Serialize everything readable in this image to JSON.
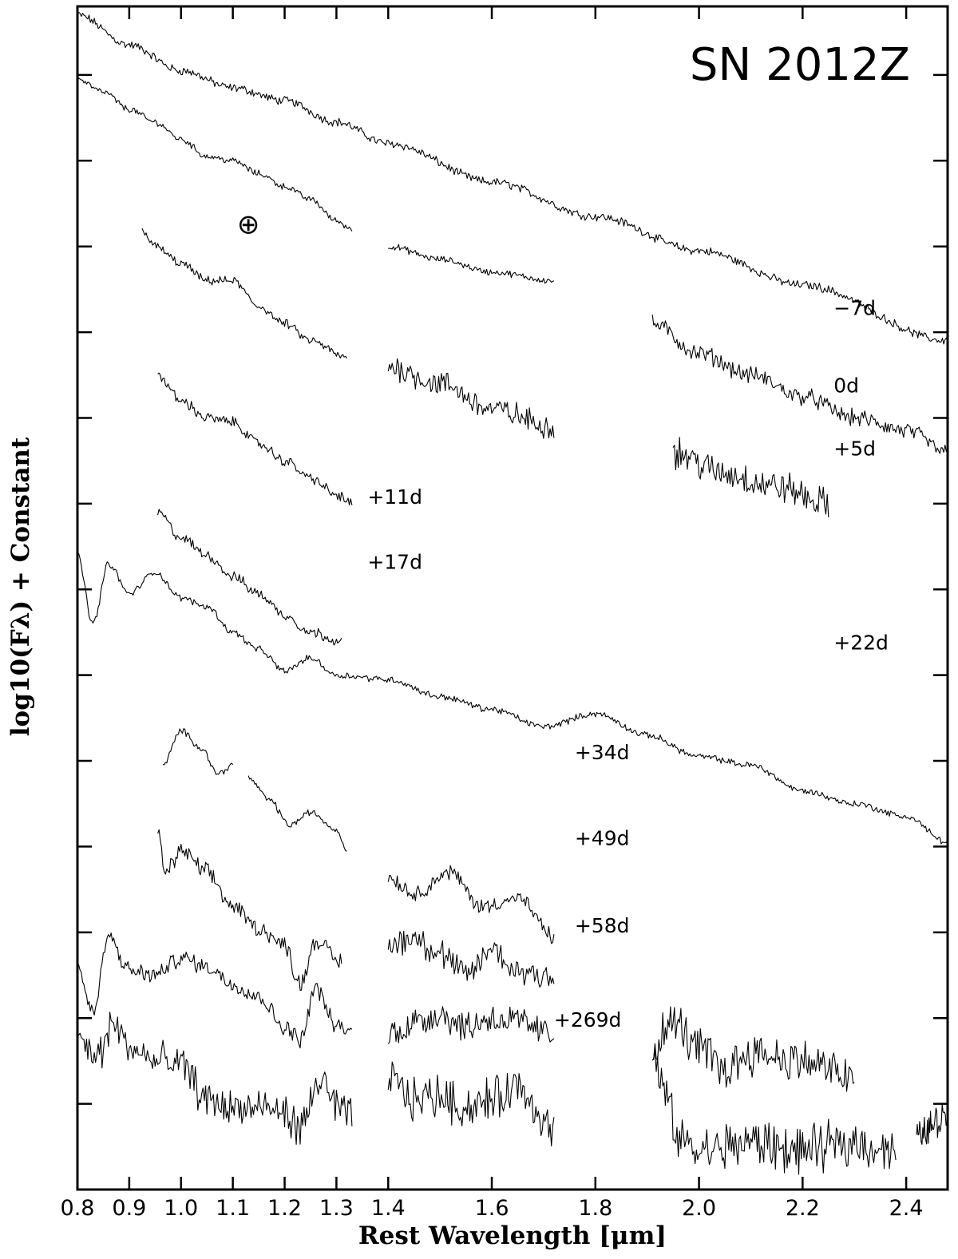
{
  "chart_data": {
    "type": "line",
    "title": "SN 2012Z",
    "xlabel": "Rest Wavelength [μm]",
    "ylabel": "log10(Fλ) + Constant",
    "xlim": [
      0.8,
      2.48
    ],
    "ylim": [
      0,
      13.8
    ],
    "x_unit": "μm",
    "grid": false,
    "legend": "none",
    "x_ticks": [
      "0.8",
      "0.9",
      "1.0",
      "1.1",
      "1.2",
      "1.3",
      "1.4",
      "1.6",
      "1.8",
      "2.0",
      "2.2",
      "2.4"
    ],
    "x_tick_values": [
      0.8,
      0.9,
      1.0,
      1.1,
      1.2,
      1.3,
      1.4,
      1.6,
      1.8,
      2.0,
      2.2,
      2.4
    ],
    "y_tick_values": [
      1,
      2,
      3,
      4,
      5,
      6,
      7,
      8,
      9,
      10,
      11,
      12,
      13
    ],
    "telluric_symbol": "⊕",
    "telluric_x": 1.13,
    "telluric_y": 11.15,
    "line_color": "#000000",
    "series": [
      {
        "label": "−7d",
        "label_x": 2.26,
        "label_y": 10.2,
        "segments": [
          {
            "x": [
              0.8,
              0.9,
              1.0,
              1.1,
              1.2,
              1.3,
              1.4,
              1.6,
              1.8,
              2.0,
              2.2,
              2.48
            ],
            "y": [
              13.7,
              13.35,
              13.05,
              12.85,
              12.7,
              12.45,
              12.2,
              11.75,
              11.35,
              10.95,
              10.55,
              9.9
            ],
            "noise": 0.04
          }
        ]
      },
      {
        "label": "0d",
        "label_x": 2.26,
        "label_y": 9.3,
        "segments": [
          {
            "x": [
              0.8,
              0.85,
              0.9,
              0.95,
              1.0,
              1.05,
              1.1,
              1.15,
              1.2,
              1.25,
              1.3,
              1.33
            ],
            "y": [
              12.95,
              12.8,
              12.6,
              12.45,
              12.25,
              12.05,
              12.0,
              11.85,
              11.7,
              11.55,
              11.3,
              11.2
            ],
            "noise": 0.03
          },
          {
            "x": [
              1.4,
              1.5,
              1.6,
              1.72
            ],
            "y": [
              11.0,
              10.85,
              10.7,
              10.6
            ],
            "noise": 0.03
          },
          {
            "x": [
              1.91,
              2.0,
              2.1,
              2.2,
              2.3,
              2.4,
              2.48
            ],
            "y": [
              10.1,
              9.75,
              9.5,
              9.25,
              9.0,
              8.85,
              8.6
            ],
            "noise": 0.08
          }
        ]
      },
      {
        "label": "+5d",
        "label_x": 2.26,
        "label_y": 8.56,
        "segments": [
          {
            "x": [
              0.925,
              0.95,
              1.0,
              1.05,
              1.1,
              1.15,
              1.2,
              1.25,
              1.32
            ],
            "y": [
              11.2,
              11.0,
              10.8,
              10.6,
              10.6,
              10.3,
              10.1,
              9.9,
              9.7
            ],
            "noise": 0.04
          },
          {
            "x": [
              1.4,
              1.5,
              1.6,
              1.72
            ],
            "y": [
              9.6,
              9.4,
              9.1,
              8.9
            ],
            "noise": 0.12
          },
          {
            "x": [
              1.95,
              2.05,
              2.15,
              2.25
            ],
            "y": [
              8.6,
              8.35,
              8.2,
              8.0
            ],
            "noise": 0.15
          }
        ]
      },
      {
        "label": "+11d",
        "label_x": 1.36,
        "label_y": 8.0,
        "segments": [
          {
            "x": [
              0.955,
              1.0,
              1.05,
              1.1,
              1.15,
              1.2,
              1.25,
              1.3,
              1.33
            ],
            "y": [
              9.5,
              9.2,
              9.0,
              8.95,
              8.7,
              8.5,
              8.3,
              8.1,
              8.0
            ],
            "noise": 0.05
          }
        ]
      },
      {
        "label": "+17d",
        "label_x": 1.36,
        "label_y": 7.24,
        "segments": [
          {
            "x": [
              0.955,
              1.0,
              1.05,
              1.1,
              1.15,
              1.2,
              1.25,
              1.31
            ],
            "y": [
              7.9,
              7.6,
              7.4,
              7.15,
              6.95,
              6.7,
              6.5,
              6.4
            ],
            "noise": 0.05
          }
        ]
      },
      {
        "label": "+22d",
        "label_x": 2.26,
        "label_y": 6.3,
        "segments": [
          {
            "x": [
              0.8,
              0.83,
              0.86,
              0.9,
              0.95,
              1.0,
              1.05,
              1.1,
              1.15,
              1.2,
              1.25,
              1.3,
              1.4,
              1.5,
              1.6,
              1.7,
              1.8,
              1.9,
              2.0,
              2.1,
              2.2,
              2.3,
              2.4,
              2.48
            ],
            "y": [
              7.4,
              6.6,
              7.3,
              6.95,
              7.2,
              6.9,
              6.8,
              6.5,
              6.3,
              6.05,
              6.2,
              6.0,
              5.95,
              5.75,
              5.6,
              5.4,
              5.55,
              5.3,
              5.05,
              4.95,
              4.65,
              4.5,
              4.35,
              4.05
            ],
            "noise": 0.03
          }
        ]
      },
      {
        "label": "+34d",
        "label_x": 1.76,
        "label_y": 5.02,
        "segments": [
          {
            "x": [
              0.965,
              1.0,
              1.04,
              1.07,
              1.1
            ],
            "y": [
              4.95,
              5.35,
              5.15,
              4.85,
              4.95
            ],
            "noise": 0.03
          },
          {
            "x": [
              1.13,
              1.17,
              1.21,
              1.25,
              1.3,
              1.32
            ],
            "y": [
              4.8,
              4.55,
              4.25,
              4.4,
              4.2,
              3.95
            ],
            "noise": 0.03
          },
          {
            "x": [
              1.4,
              1.45,
              1.52,
              1.58,
              1.65,
              1.72
            ],
            "y": [
              3.65,
              3.45,
              3.7,
              3.3,
              3.4,
              2.95
            ],
            "noise": 0.07
          }
        ]
      },
      {
        "label": "+49d",
        "label_x": 1.76,
        "label_y": 4.02,
        "segments": [
          {
            "x": [
              0.955,
              0.97,
              1.0,
              1.05,
              1.1,
              1.15,
              1.2,
              1.23,
              1.26,
              1.31
            ],
            "y": [
              4.15,
              3.7,
              3.95,
              3.7,
              3.3,
              3.05,
              2.85,
              2.4,
              2.9,
              2.65
            ],
            "noise": 0.08
          },
          {
            "x": [
              1.4,
              1.45,
              1.5,
              1.55,
              1.6,
              1.65,
              1.72
            ],
            "y": [
              2.85,
              2.95,
              2.75,
              2.5,
              2.8,
              2.55,
              2.5
            ],
            "noise": 0.14
          }
        ]
      },
      {
        "label": "+58d",
        "label_x": 1.76,
        "label_y": 3.0,
        "segments": [
          {
            "x": [
              0.8,
              0.83,
              0.86,
              0.9,
              0.95,
              1.0,
              1.05,
              1.1,
              1.15,
              1.2,
              1.23,
              1.26,
              1.3,
              1.33
            ],
            "y": [
              2.6,
              2.05,
              2.95,
              2.55,
              2.5,
              2.7,
              2.6,
              2.4,
              2.25,
              1.9,
              1.75,
              2.35,
              1.9,
              1.85
            ],
            "noise": 0.08
          },
          {
            "x": [
              1.4,
              1.45,
              1.5,
              1.55,
              1.6,
              1.65,
              1.72
            ],
            "y": [
              1.8,
              1.95,
              2.05,
              1.9,
              2.0,
              1.95,
              1.8
            ],
            "noise": 0.15
          },
          {
            "x": [
              1.91,
              1.95,
              2.0,
              2.05,
              2.1,
              2.2,
              2.3
            ],
            "y": [
              1.65,
              1.95,
              1.65,
              1.4,
              1.6,
              1.5,
              1.3
            ],
            "noise": 0.2
          }
        ]
      },
      {
        "label": "+269d",
        "label_x": 1.72,
        "label_y": 1.9,
        "segments": [
          {
            "x": [
              0.8,
              0.84,
              0.87,
              0.9,
              0.95,
              1.0,
              1.05,
              1.1,
              1.15,
              1.2,
              1.23,
              1.27,
              1.3,
              1.33
            ],
            "y": [
              1.75,
              1.55,
              1.95,
              1.65,
              1.5,
              1.45,
              1.05,
              0.95,
              0.95,
              0.9,
              0.7,
              1.3,
              0.95,
              0.85
            ],
            "noise": 0.17
          },
          {
            "x": [
              1.4,
              1.45,
              1.5,
              1.55,
              1.6,
              1.65,
              1.72
            ],
            "y": [
              1.3,
              1.05,
              1.1,
              0.95,
              1.05,
              1.2,
              0.7
            ],
            "noise": 0.2
          },
          {
            "x": [
              1.91,
              1.93,
              1.96,
              2.0,
              2.1,
              2.2,
              2.3,
              2.38
            ],
            "y": [
              1.5,
              1.2,
              0.6,
              0.45,
              0.55,
              0.45,
              0.55,
              0.45
            ],
            "noise": 0.22
          },
          {
            "x": [
              2.42,
              2.45,
              2.48
            ],
            "y": [
              0.6,
              0.75,
              0.9
            ],
            "noise": 0.15
          }
        ]
      }
    ]
  }
}
